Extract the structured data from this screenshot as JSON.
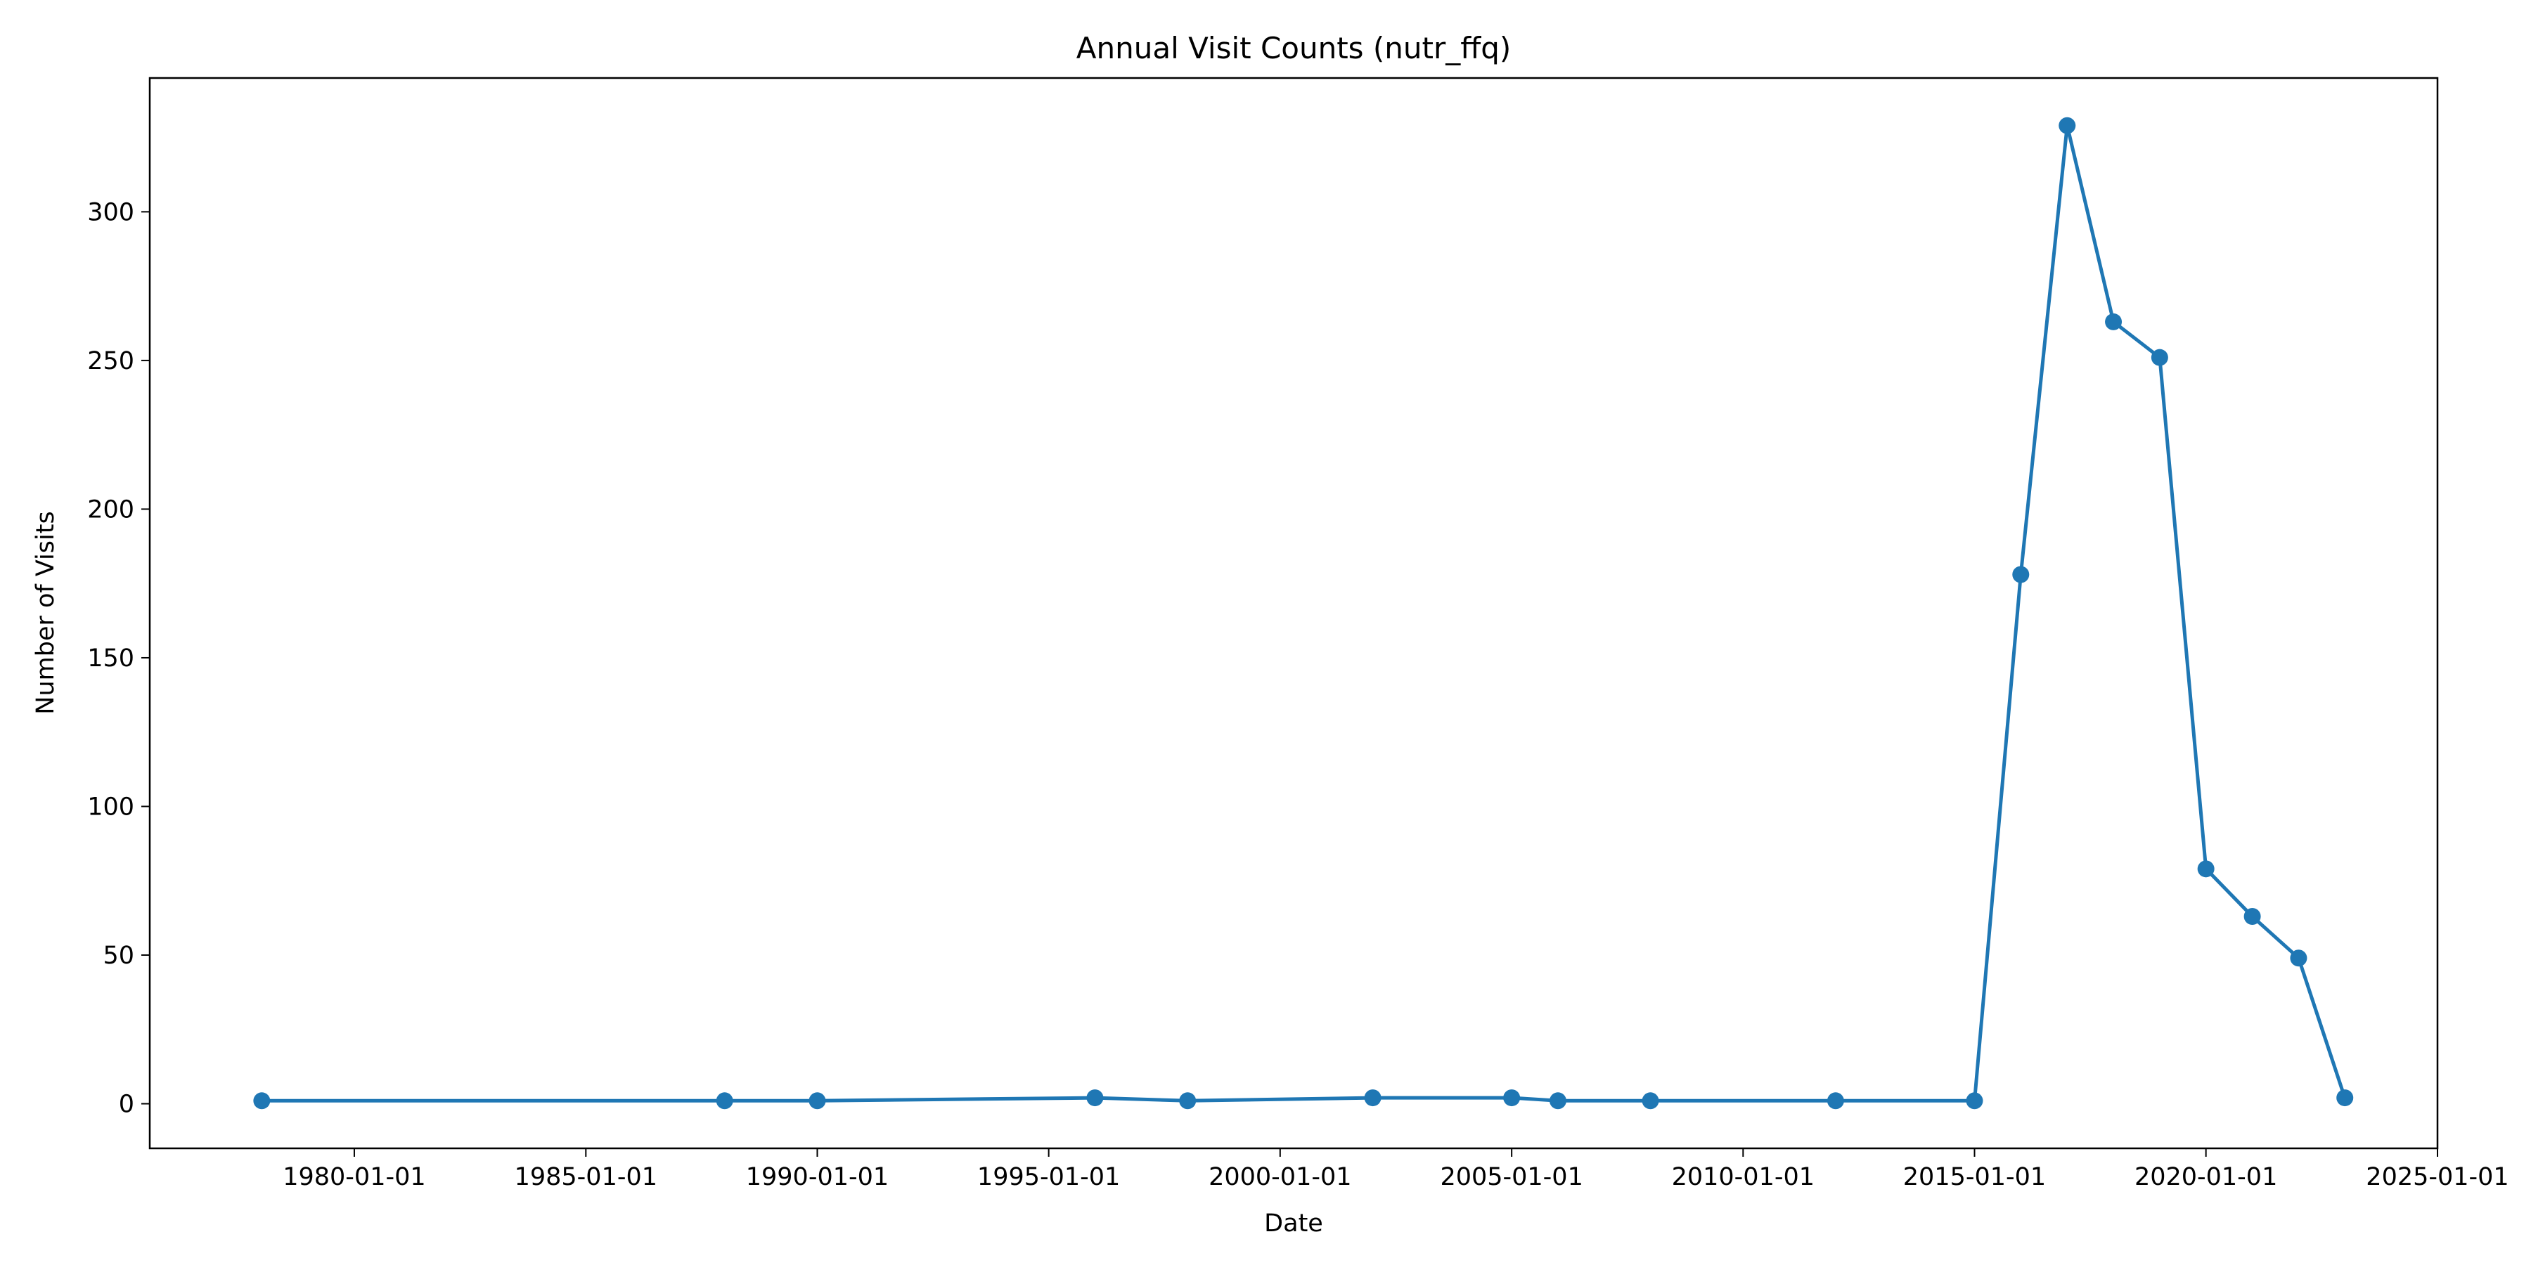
{
  "chart_data": {
    "type": "line",
    "title": "Annual Visit Counts (nutr_ffq)",
    "xlabel": "Date",
    "ylabel": "Number of Visits",
    "x_ticks": [
      "1980-01-01",
      "1985-01-01",
      "1990-01-01",
      "1995-01-01",
      "2000-01-01",
      "2005-01-01",
      "2010-01-01",
      "2015-01-01",
      "2020-01-01",
      "2025-01-01"
    ],
    "y_ticks": [
      "0",
      "50",
      "100",
      "150",
      "200",
      "250",
      "300"
    ],
    "xlim": [
      "1975-08-01",
      "2025-01-01"
    ],
    "ylim": [
      -15,
      345
    ],
    "grid": false,
    "legend": "none",
    "series": [
      {
        "color": "#1f77b4",
        "marker": "circle",
        "points": [
          {
            "x": "1978-01-01",
            "y": 1
          },
          {
            "x": "1988-01-01",
            "y": 1
          },
          {
            "x": "1990-01-01",
            "y": 1
          },
          {
            "x": "1996-01-01",
            "y": 2
          },
          {
            "x": "1998-01-01",
            "y": 1
          },
          {
            "x": "2002-01-01",
            "y": 2
          },
          {
            "x": "2005-01-01",
            "y": 2
          },
          {
            "x": "2006-01-01",
            "y": 1
          },
          {
            "x": "2008-01-01",
            "y": 1
          },
          {
            "x": "2012-01-01",
            "y": 1
          },
          {
            "x": "2015-01-01",
            "y": 1
          },
          {
            "x": "2016-01-01",
            "y": 178
          },
          {
            "x": "2017-01-01",
            "y": 329
          },
          {
            "x": "2018-01-01",
            "y": 263
          },
          {
            "x": "2019-01-01",
            "y": 251
          },
          {
            "x": "2020-01-01",
            "y": 79
          },
          {
            "x": "2021-01-01",
            "y": 63
          },
          {
            "x": "2022-01-01",
            "y": 49
          },
          {
            "x": "2023-01-01",
            "y": 2
          }
        ]
      }
    ]
  }
}
